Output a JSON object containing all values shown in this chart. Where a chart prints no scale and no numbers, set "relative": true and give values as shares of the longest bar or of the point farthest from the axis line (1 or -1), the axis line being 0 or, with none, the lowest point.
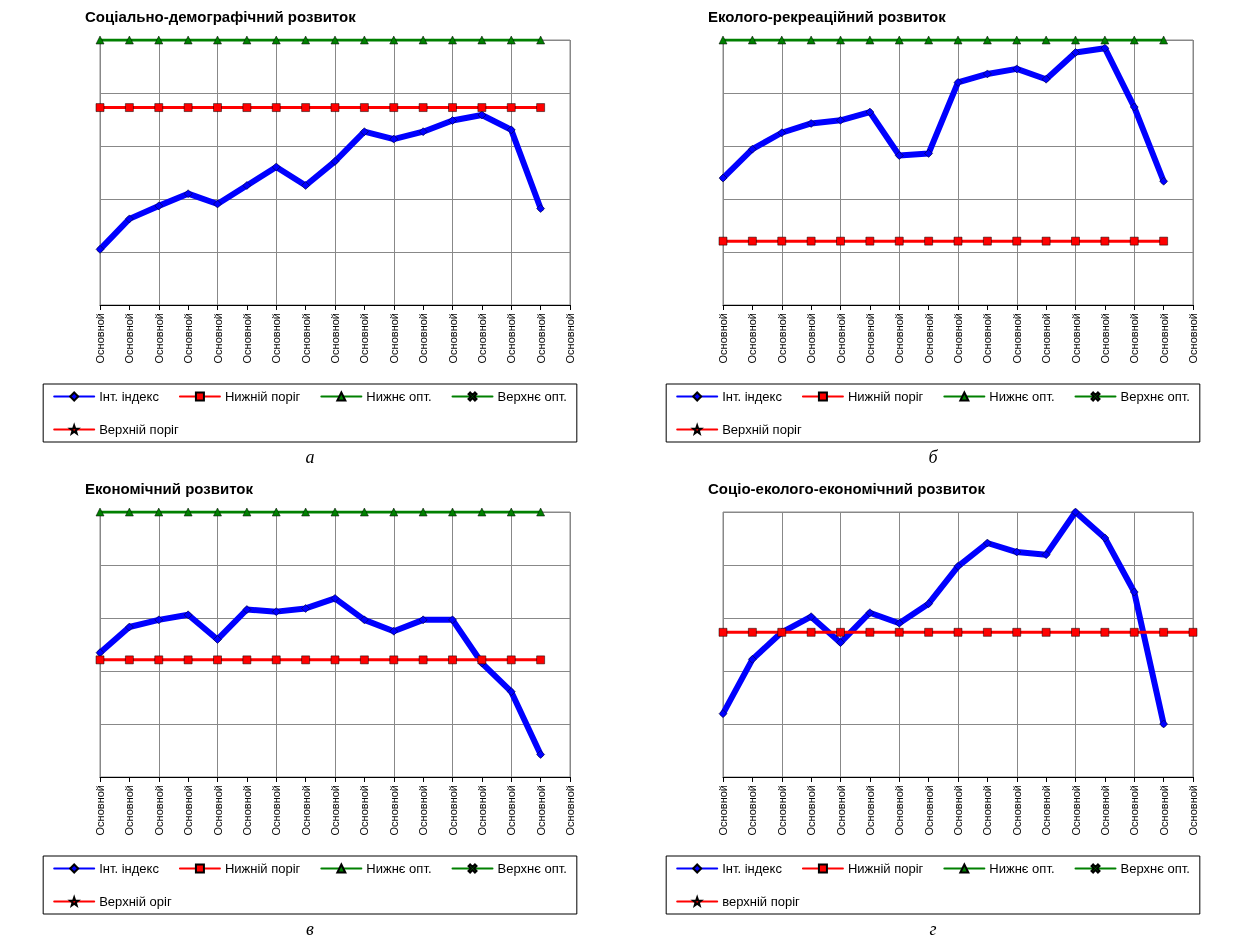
{
  "chart_data": [
    {
      "type": "line",
      "title": "Соціально-демографічний розвиток",
      "relative": true,
      "grid": true,
      "legend": "bottom",
      "annotations": [
        "а"
      ],
      "categories": [
        "Основной",
        "Основной",
        "Основной",
        "Основной",
        "Основной",
        "Основной",
        "Основной",
        "Основной",
        "Основной",
        "Основной",
        "Основной",
        "Основной",
        "Основной",
        "Основной",
        "Основной",
        "Основной",
        "Основной"
      ],
      "series": [
        {
          "name": "Інт. індекс",
          "color": "#0000ff",
          "marker": "diamond",
          "values": [
            0.21,
            0.325,
            0.374,
            0.42,
            0.381,
            0.451,
            0.521,
            0.451,
            0.542,
            0.654,
            0.626,
            0.654,
            0.696,
            0.717,
            0.661,
            0.364,
            null
          ]
        },
        {
          "name": "Нижній поріг",
          "color": "#ff0000",
          "marker": "square",
          "values": [
            0.745,
            0.745,
            0.745,
            0.745,
            0.745,
            0.745,
            0.745,
            0.745,
            0.745,
            0.745,
            0.745,
            0.745,
            0.745,
            0.745,
            0.745,
            0.745,
            null
          ]
        },
        {
          "name": "Нижнє опт.",
          "color": "#008000",
          "marker": "triangle",
          "values": [
            1,
            1,
            1,
            1,
            1,
            1,
            1,
            1,
            1,
            1,
            1,
            1,
            1,
            1,
            1,
            1,
            null
          ]
        },
        {
          "name": "Верхнє опт.",
          "color": "#008000",
          "marker": "cross",
          "values": [
            null,
            null,
            null,
            null,
            null,
            null,
            null,
            null,
            null,
            null,
            null,
            null,
            null,
            null,
            null,
            null,
            null
          ]
        },
        {
          "name": "Верхній поріг",
          "color": "#ff0000",
          "marker": "star",
          "values": [
            null,
            null,
            null,
            null,
            null,
            null,
            null,
            null,
            null,
            null,
            null,
            null,
            null,
            null,
            null,
            null,
            null
          ]
        }
      ]
    },
    {
      "type": "line",
      "title": "Еколого-рекреаційний розвиток",
      "relative": true,
      "grid": true,
      "legend": "bottom",
      "annotations": [
        "б"
      ],
      "categories": [
        "Основной",
        "Основной",
        "Основной",
        "Основной",
        "Основной",
        "Основной",
        "Основной",
        "Основной",
        "Основной",
        "Основной",
        "Основной",
        "Основной",
        "Основной",
        "Основной",
        "Основной",
        "Основной",
        "Основной"
      ],
      "series": [
        {
          "name": "Інт. індекс",
          "color": "#0000ff",
          "marker": "diamond",
          "values": [
            0.479,
            0.588,
            0.65,
            0.685,
            0.697,
            0.728,
            0.564,
            0.572,
            0.84,
            0.872,
            0.891,
            0.852,
            0.953,
            0.969,
            0.747,
            0.467,
            null
          ]
        },
        {
          "name": "Нижній поріг",
          "color": "#ff0000",
          "marker": "square",
          "values": [
            0.241,
            0.241,
            0.241,
            0.241,
            0.241,
            0.241,
            0.241,
            0.241,
            0.241,
            0.241,
            0.241,
            0.241,
            0.241,
            0.241,
            0.241,
            0.241,
            null
          ]
        },
        {
          "name": "Нижнє опт.",
          "color": "#008000",
          "marker": "triangle",
          "values": [
            1,
            1,
            1,
            1,
            1,
            1,
            1,
            1,
            1,
            1,
            1,
            1,
            1,
            1,
            1,
            1,
            null
          ]
        },
        {
          "name": "Верхнє опт.",
          "color": "#008000",
          "marker": "cross",
          "values": [
            null,
            null,
            null,
            null,
            null,
            null,
            null,
            null,
            null,
            null,
            null,
            null,
            null,
            null,
            null,
            null,
            null
          ]
        },
        {
          "name": "Верхній поріг",
          "color": "#ff0000",
          "marker": "star",
          "values": [
            null,
            null,
            null,
            null,
            null,
            null,
            null,
            null,
            null,
            null,
            null,
            null,
            null,
            null,
            null,
            null,
            null
          ]
        }
      ]
    },
    {
      "type": "line",
      "title": "Економічний розвиток",
      "relative": true,
      "grid": true,
      "legend": "bottom",
      "annotations": [
        "в"
      ],
      "categories": [
        "Основной",
        "Основной",
        "Основной",
        "Основной",
        "Основной",
        "Основной",
        "Основной",
        "Основной",
        "Основной",
        "Основной",
        "Основной",
        "Основной",
        "Основной",
        "Основной",
        "Основной",
        "Основной",
        "Основной"
      ],
      "series": [
        {
          "name": "Інт. індекс",
          "color": "#0000ff",
          "marker": "diamond",
          "values": [
            0.469,
            0.566,
            0.593,
            0.612,
            0.519,
            0.632,
            0.624,
            0.636,
            0.674,
            0.593,
            0.55,
            0.593,
            0.593,
            0.43,
            0.322,
            0.085,
            null
          ]
        },
        {
          "name": "Нижній поріг",
          "color": "#ff0000",
          "marker": "square",
          "values": [
            0.442,
            0.442,
            0.442,
            0.442,
            0.442,
            0.442,
            0.442,
            0.442,
            0.442,
            0.442,
            0.442,
            0.442,
            0.442,
            0.442,
            0.442,
            0.442,
            null
          ]
        },
        {
          "name": "Нижнє опт.",
          "color": "#008000",
          "marker": "triangle",
          "values": [
            1,
            1,
            1,
            1,
            1,
            1,
            1,
            1,
            1,
            1,
            1,
            1,
            1,
            1,
            1,
            1,
            null
          ]
        },
        {
          "name": "Верхнє опт.",
          "color": "#008000",
          "marker": "cross",
          "values": [
            null,
            null,
            null,
            null,
            null,
            null,
            null,
            null,
            null,
            null,
            null,
            null,
            null,
            null,
            null,
            null,
            null
          ]
        },
        {
          "name": "Верхній оріг",
          "color": "#ff0000",
          "marker": "star",
          "values": [
            null,
            null,
            null,
            null,
            null,
            null,
            null,
            null,
            null,
            null,
            null,
            null,
            null,
            null,
            null,
            null,
            null
          ]
        }
      ]
    },
    {
      "type": "line",
      "title": "Соціо-еколого-економічний розвиток",
      "relative": true,
      "grid": true,
      "legend": "bottom",
      "annotations": [
        "г"
      ],
      "categories": [
        "Основной",
        "Основной",
        "Основной",
        "Основной",
        "Основной",
        "Основной",
        "Основной",
        "Основной",
        "Основной",
        "Основной",
        "Основной",
        "Основной",
        "Основной",
        "Основной",
        "Основной",
        "Основной",
        "Основной"
      ],
      "series": [
        {
          "name": "Інт. індекс",
          "color": "#0000ff",
          "marker": "diamond",
          "values": [
            0.239,
            0.444,
            0.546,
            0.605,
            0.507,
            0.62,
            0.58,
            0.654,
            0.795,
            0.883,
            0.849,
            0.839,
            1,
            0.902,
            0.698,
            0.2,
            null
          ]
        },
        {
          "name": "Нижній поріг",
          "color": "#ff0000",
          "marker": "square",
          "values": [
            0.546,
            0.546,
            0.546,
            0.546,
            0.546,
            0.546,
            0.546,
            0.546,
            0.546,
            0.546,
            0.546,
            0.546,
            0.546,
            0.546,
            0.546,
            0.546,
            0.546
          ]
        },
        {
          "name": "Нижнє опт.",
          "color": "#008000",
          "marker": "triangle",
          "values": [
            null,
            null,
            null,
            null,
            null,
            null,
            null,
            null,
            null,
            null,
            null,
            null,
            null,
            null,
            null,
            null,
            null
          ]
        },
        {
          "name": "Верхнє опт.",
          "color": "#008000",
          "marker": "cross",
          "values": [
            null,
            null,
            null,
            null,
            null,
            null,
            null,
            null,
            null,
            null,
            null,
            null,
            null,
            null,
            null,
            null,
            null
          ]
        },
        {
          "name": "верхній поріг",
          "color": "#ff0000",
          "marker": "star",
          "values": [
            null,
            null,
            null,
            null,
            null,
            null,
            null,
            null,
            null,
            null,
            null,
            null,
            null,
            null,
            null,
            null,
            null
          ]
        }
      ]
    }
  ]
}
